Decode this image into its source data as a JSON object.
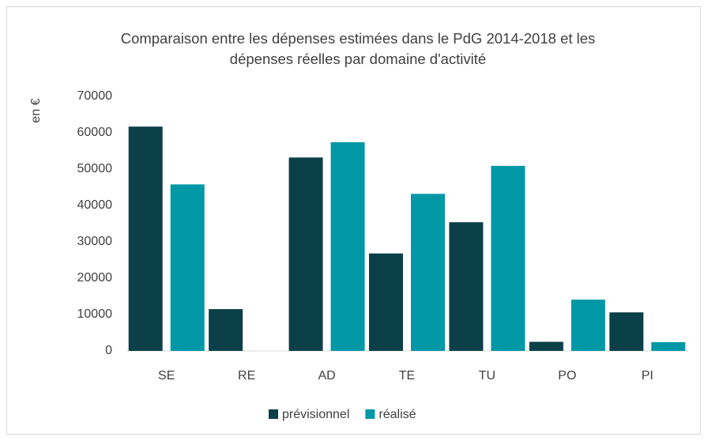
{
  "chart_data": {
    "type": "bar",
    "title": "Comparaison entre les dépenses estimées dans le PdG 2014-2018 et les dépenses réelles par domaine d'activité",
    "y_label": "en €",
    "categories": [
      "SE",
      "RE",
      "AD",
      "TE",
      "TU",
      "PO",
      "PI"
    ],
    "series": [
      {
        "name": "prévisionnel",
        "color": "#0b4048",
        "values": [
          61700,
          11500,
          53200,
          26800,
          35400,
          2500,
          10600
        ]
      },
      {
        "name": "réalisé",
        "color": "#0097a7",
        "values": [
          45800,
          0,
          57400,
          43200,
          50900,
          14100,
          2400
        ]
      }
    ],
    "ylim": [
      0,
      70000
    ],
    "yticks": [
      0,
      10000,
      20000,
      30000,
      40000,
      50000,
      60000,
      70000
    ],
    "grid": false,
    "legend": "bottom"
  }
}
